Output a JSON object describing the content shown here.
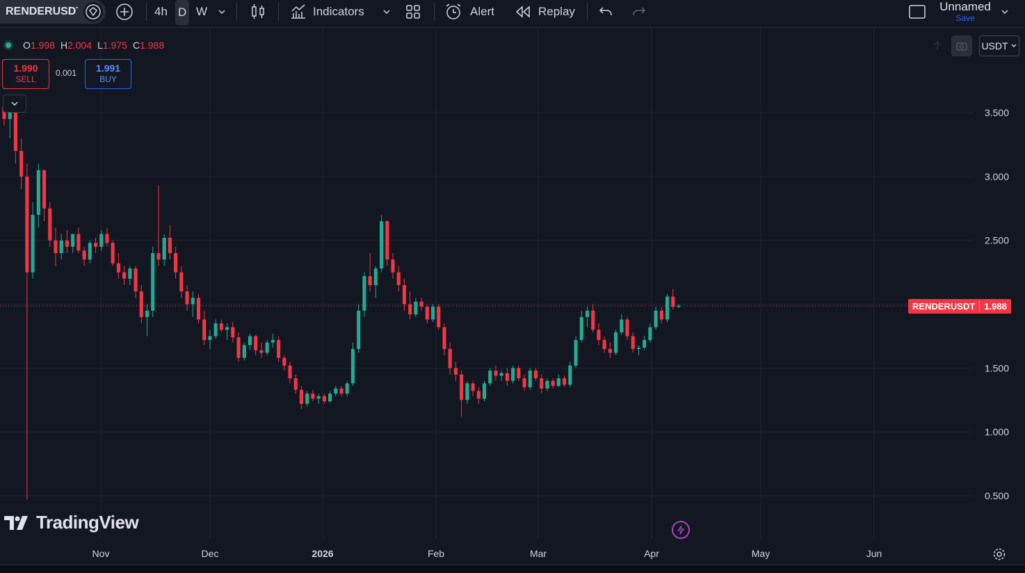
{
  "toolbar": {
    "symbol": "RENDERUSDT",
    "timeframes": [
      "4h",
      "D",
      "W"
    ],
    "active_timeframe": "D",
    "indicators_label": "Indicators",
    "alert_label": "Alert",
    "replay_label": "Replay",
    "layout_name": "Unnamed",
    "save_label": "Save"
  },
  "legend": {
    "o_key": "O",
    "o_val": "1.998",
    "h_key": "H",
    "h_val": "2.004",
    "l_key": "L",
    "l_val": "1.975",
    "c_key": "C",
    "c_val": "1.988"
  },
  "trade": {
    "sell_price": "1.990",
    "sell_label": "SELL",
    "spread": "0.001",
    "buy_price": "1.991",
    "buy_label": "BUY"
  },
  "price_axis": {
    "currency": "USDT",
    "last_price_symbol": "RENDERUSDT",
    "last_price": "1.988"
  },
  "watermark": "TradingView",
  "colors": {
    "up": "#22ab94",
    "down": "#f23645",
    "background": "#131722",
    "grid": "#1f2330",
    "accent": "#2962ff"
  },
  "chart_data": {
    "type": "candlestick",
    "yticks": [
      "3.500",
      "3.000",
      "2.500",
      "2.000",
      "1.500",
      "1.000",
      "0.500"
    ],
    "ylim": [
      0.0,
      4.0
    ],
    "xticks": [
      "Nov",
      "Dec",
      "2026",
      "Feb",
      "Mar",
      "Apr",
      "May",
      "Jun"
    ],
    "ohlc_approx": [
      [
        3.55,
        3.62,
        3.4,
        3.45
      ],
      [
        3.45,
        3.6,
        3.3,
        3.55
      ],
      [
        3.5,
        3.55,
        3.1,
        3.2
      ],
      [
        3.2,
        3.3,
        2.9,
        3.0
      ],
      [
        3.0,
        3.1,
        0.47,
        2.25
      ],
      [
        2.25,
        2.8,
        2.2,
        2.7
      ],
      [
        2.7,
        3.1,
        2.6,
        3.05
      ],
      [
        3.05,
        3.05,
        2.65,
        2.75
      ],
      [
        2.75,
        2.8,
        2.45,
        2.5
      ],
      [
        2.5,
        2.6,
        2.3,
        2.4
      ],
      [
        2.4,
        2.55,
        2.35,
        2.5
      ],
      [
        2.5,
        2.58,
        2.4,
        2.45
      ],
      [
        2.45,
        2.55,
        2.4,
        2.55
      ],
      [
        2.55,
        2.6,
        2.4,
        2.42
      ],
      [
        2.42,
        2.45,
        2.3,
        2.35
      ],
      [
        2.35,
        2.5,
        2.32,
        2.48
      ],
      [
        2.48,
        2.52,
        2.4,
        2.45
      ],
      [
        2.45,
        2.58,
        2.42,
        2.55
      ],
      [
        2.55,
        2.6,
        2.45,
        2.48
      ],
      [
        2.48,
        2.5,
        2.3,
        2.32
      ],
      [
        2.32,
        2.4,
        2.2,
        2.25
      ],
      [
        2.25,
        2.3,
        2.15,
        2.2
      ],
      [
        2.2,
        2.3,
        2.15,
        2.28
      ],
      [
        2.28,
        2.3,
        2.05,
        2.1
      ],
      [
        2.1,
        2.15,
        1.85,
        1.9
      ],
      [
        1.9,
        2.0,
        1.75,
        1.95
      ],
      [
        1.95,
        2.45,
        1.9,
        2.4
      ],
      [
        2.4,
        2.93,
        2.3,
        2.35
      ],
      [
        2.35,
        2.55,
        2.3,
        2.52
      ],
      [
        2.52,
        2.62,
        2.35,
        2.4
      ],
      [
        2.4,
        2.45,
        2.2,
        2.25
      ],
      [
        2.25,
        2.3,
        2.05,
        2.1
      ],
      [
        2.1,
        2.15,
        1.95,
        2.0
      ],
      [
        2.0,
        2.1,
        1.9,
        2.05
      ],
      [
        2.05,
        2.08,
        1.85,
        1.88
      ],
      [
        1.88,
        1.95,
        1.68,
        1.72
      ],
      [
        1.72,
        1.8,
        1.65,
        1.75
      ],
      [
        1.75,
        1.88,
        1.73,
        1.85
      ],
      [
        1.85,
        1.88,
        1.78,
        1.8
      ],
      [
        1.8,
        1.85,
        1.72,
        1.82
      ],
      [
        1.82,
        1.86,
        1.7,
        1.74
      ],
      [
        1.74,
        1.78,
        1.55,
        1.58
      ],
      [
        1.58,
        1.7,
        1.56,
        1.68
      ],
      [
        1.68,
        1.77,
        1.64,
        1.75
      ],
      [
        1.75,
        1.76,
        1.6,
        1.64
      ],
      [
        1.64,
        1.7,
        1.58,
        1.62
      ],
      [
        1.62,
        1.72,
        1.6,
        1.7
      ],
      [
        1.7,
        1.77,
        1.66,
        1.72
      ],
      [
        1.72,
        1.75,
        1.55,
        1.58
      ],
      [
        1.58,
        1.6,
        1.48,
        1.52
      ],
      [
        1.52,
        1.55,
        1.38,
        1.42
      ],
      [
        1.42,
        1.45,
        1.3,
        1.33
      ],
      [
        1.33,
        1.36,
        1.18,
        1.22
      ],
      [
        1.22,
        1.32,
        1.2,
        1.3
      ],
      [
        1.3,
        1.33,
        1.24,
        1.26
      ],
      [
        1.26,
        1.3,
        1.22,
        1.28
      ],
      [
        1.28,
        1.3,
        1.22,
        1.24
      ],
      [
        1.24,
        1.32,
        1.23,
        1.3
      ],
      [
        1.3,
        1.36,
        1.28,
        1.34
      ],
      [
        1.34,
        1.36,
        1.28,
        1.3
      ],
      [
        1.3,
        1.4,
        1.28,
        1.38
      ],
      [
        1.38,
        1.7,
        1.36,
        1.65
      ],
      [
        1.65,
        2.0,
        1.62,
        1.95
      ],
      [
        1.95,
        2.25,
        1.9,
        2.22
      ],
      [
        2.22,
        2.4,
        2.1,
        2.15
      ],
      [
        2.15,
        2.3,
        2.05,
        2.28
      ],
      [
        2.28,
        2.7,
        2.25,
        2.65
      ],
      [
        2.65,
        2.66,
        2.3,
        2.35
      ],
      [
        2.35,
        2.4,
        2.2,
        2.25
      ],
      [
        2.25,
        2.3,
        2.1,
        2.15
      ],
      [
        2.15,
        2.2,
        1.95,
        2.0
      ],
      [
        2.0,
        2.1,
        1.88,
        1.92
      ],
      [
        1.92,
        2.05,
        1.9,
        2.02
      ],
      [
        2.02,
        2.05,
        1.95,
        1.98
      ],
      [
        1.98,
        2.0,
        1.85,
        1.88
      ],
      [
        1.88,
        2.0,
        1.86,
        1.98
      ],
      [
        1.98,
        2.0,
        1.8,
        1.82
      ],
      [
        1.82,
        1.85,
        1.6,
        1.65
      ],
      [
        1.65,
        1.7,
        1.45,
        1.5
      ],
      [
        1.5,
        1.55,
        1.4,
        1.45
      ],
      [
        1.45,
        1.48,
        1.12,
        1.25
      ],
      [
        1.25,
        1.4,
        1.22,
        1.38
      ],
      [
        1.38,
        1.4,
        1.28,
        1.32
      ],
      [
        1.32,
        1.35,
        1.22,
        1.26
      ],
      [
        1.26,
        1.4,
        1.24,
        1.38
      ],
      [
        1.38,
        1.5,
        1.36,
        1.48
      ],
      [
        1.48,
        1.52,
        1.4,
        1.44
      ],
      [
        1.44,
        1.48,
        1.4,
        1.46
      ],
      [
        1.46,
        1.5,
        1.36,
        1.4
      ],
      [
        1.4,
        1.52,
        1.38,
        1.5
      ],
      [
        1.5,
        1.52,
        1.4,
        1.42
      ],
      [
        1.42,
        1.45,
        1.32,
        1.35
      ],
      [
        1.35,
        1.5,
        1.33,
        1.48
      ],
      [
        1.48,
        1.5,
        1.4,
        1.42
      ],
      [
        1.42,
        1.45,
        1.3,
        1.34
      ],
      [
        1.34,
        1.42,
        1.32,
        1.4
      ],
      [
        1.4,
        1.42,
        1.34,
        1.36
      ],
      [
        1.36,
        1.45,
        1.35,
        1.42
      ],
      [
        1.42,
        1.44,
        1.35,
        1.37
      ],
      [
        1.37,
        1.55,
        1.35,
        1.52
      ],
      [
        1.52,
        1.75,
        1.5,
        1.72
      ],
      [
        1.72,
        1.95,
        1.7,
        1.9
      ],
      [
        1.9,
        1.98,
        1.82,
        1.95
      ],
      [
        1.95,
        2.0,
        1.78,
        1.8
      ],
      [
        1.8,
        1.85,
        1.68,
        1.72
      ],
      [
        1.72,
        1.75,
        1.62,
        1.65
      ],
      [
        1.65,
        1.7,
        1.58,
        1.62
      ],
      [
        1.62,
        1.8,
        1.6,
        1.78
      ],
      [
        1.78,
        1.92,
        1.76,
        1.88
      ],
      [
        1.88,
        1.9,
        1.72,
        1.75
      ],
      [
        1.75,
        1.78,
        1.62,
        1.65
      ],
      [
        1.65,
        1.68,
        1.6,
        1.66
      ],
      [
        1.66,
        1.75,
        1.64,
        1.72
      ],
      [
        1.72,
        1.85,
        1.7,
        1.82
      ],
      [
        1.82,
        1.98,
        1.8,
        1.95
      ],
      [
        1.95,
        1.98,
        1.85,
        1.88
      ],
      [
        1.88,
        2.08,
        1.86,
        2.06
      ],
      [
        2.06,
        2.12,
        1.96,
        1.98
      ],
      [
        1.98,
        2.0,
        1.97,
        1.988
      ]
    ]
  }
}
